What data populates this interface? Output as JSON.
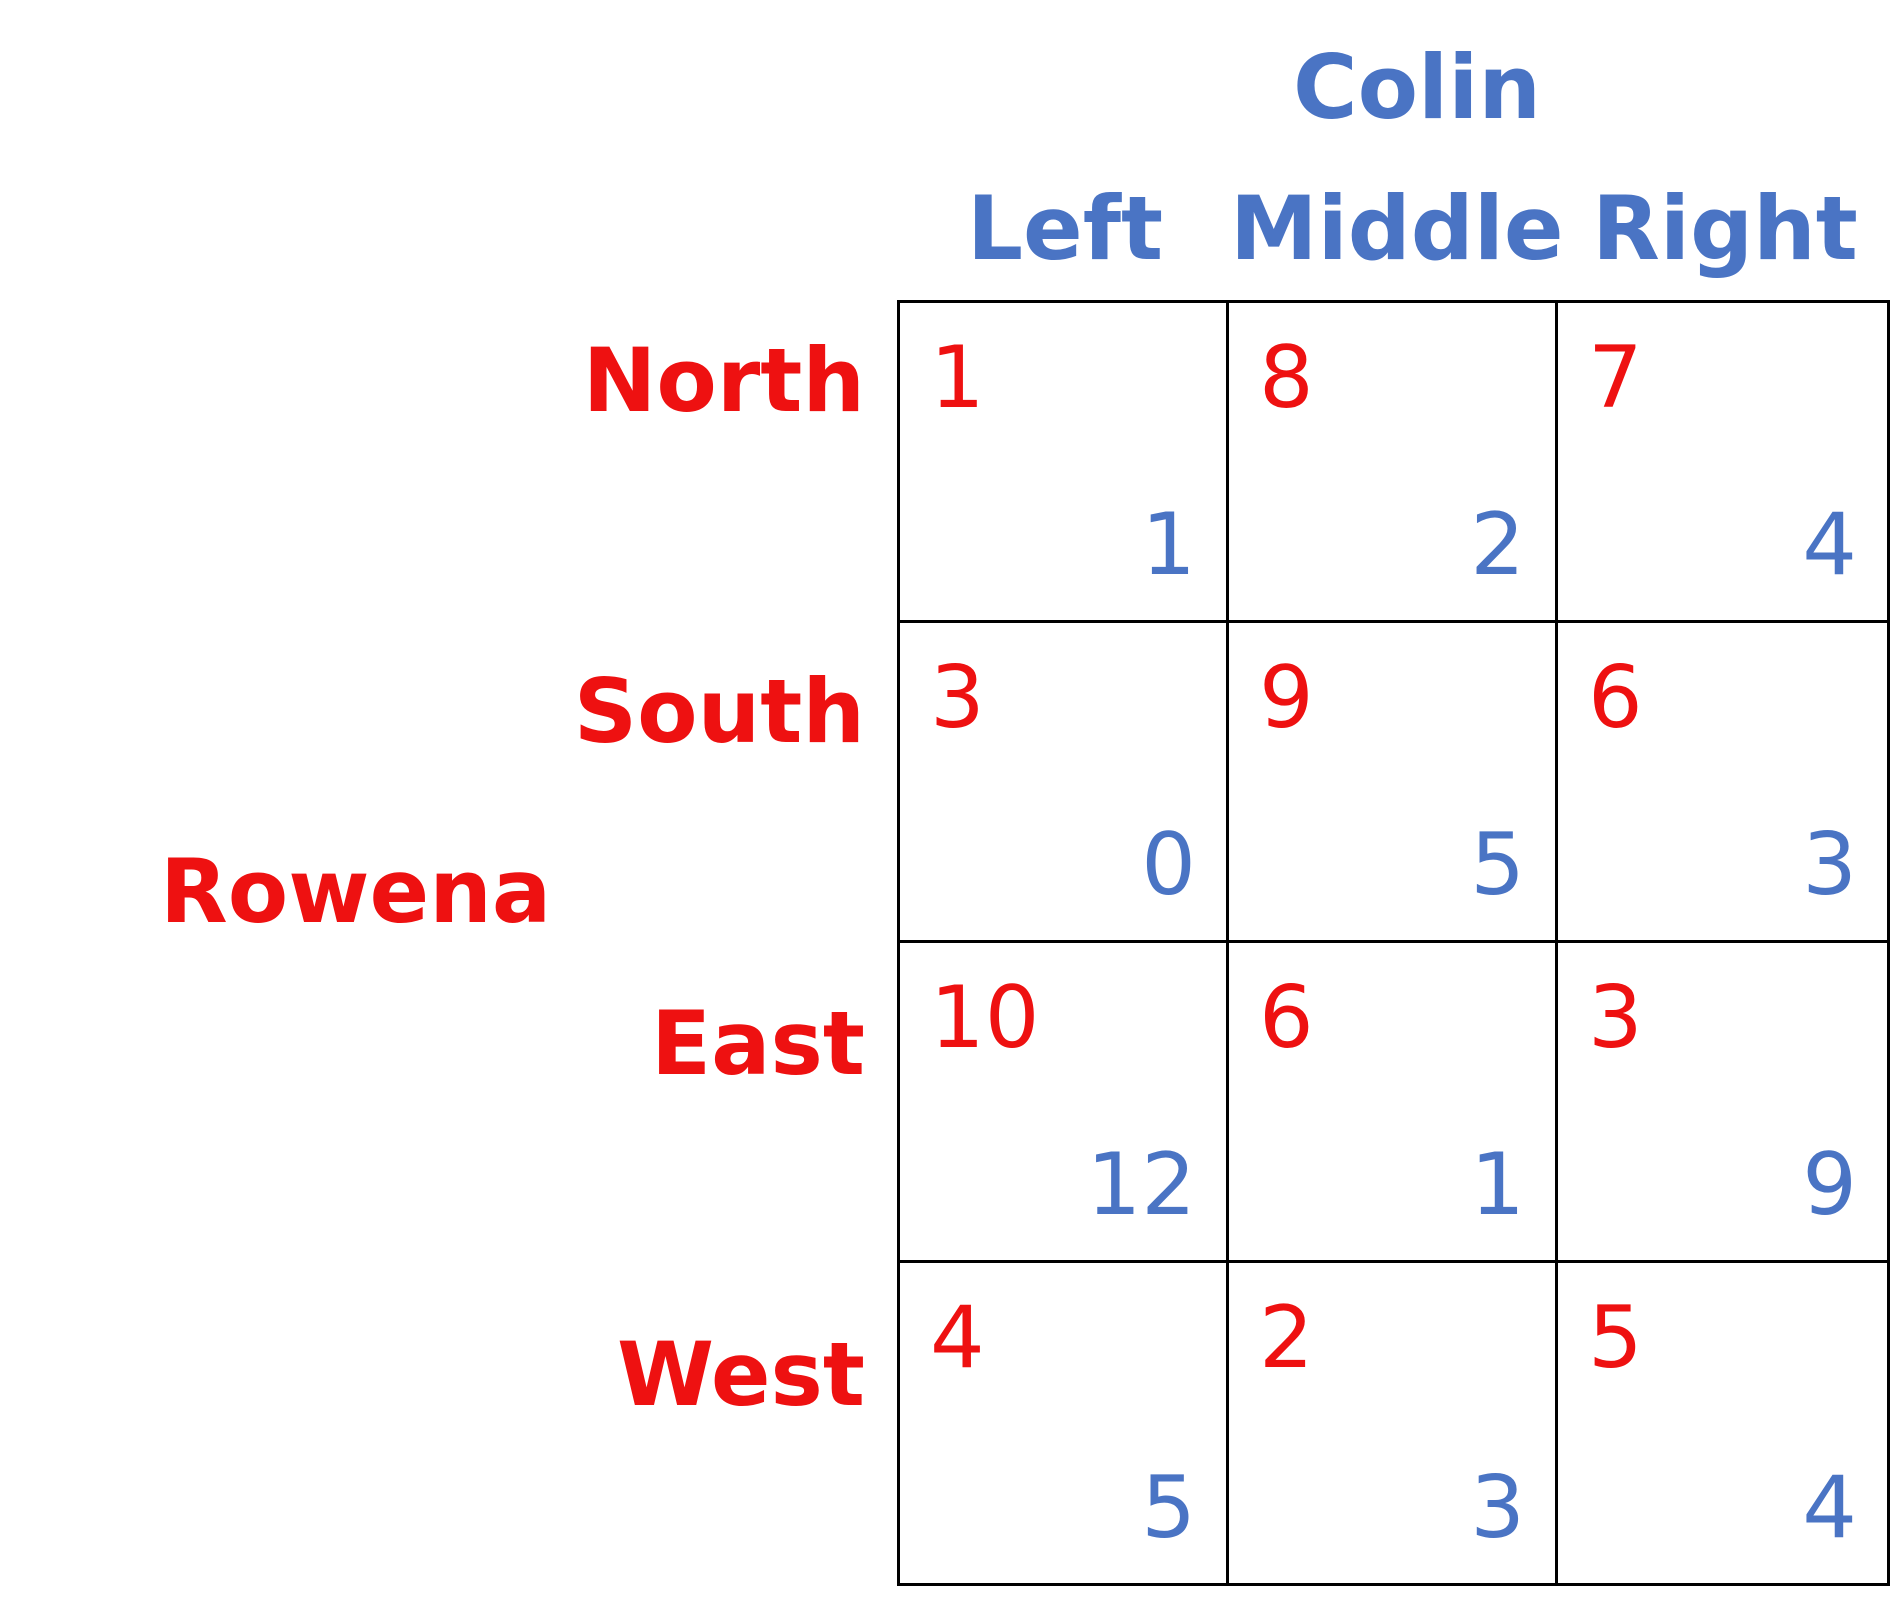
{
  "players": {
    "column_player": "Colin",
    "row_player": "Rowena"
  },
  "columns": [
    "Left",
    "Middle",
    "Right"
  ],
  "rows": [
    "North",
    "South",
    "East",
    "West"
  ],
  "colors": {
    "row_player": "#ee1111",
    "column_player": "#4a74c4"
  },
  "payoffs": [
    [
      {
        "row": "1",
        "col": "1"
      },
      {
        "row": "8",
        "col": "2"
      },
      {
        "row": "7",
        "col": "4"
      }
    ],
    [
      {
        "row": "3",
        "col": "0"
      },
      {
        "row": "9",
        "col": "5"
      },
      {
        "row": "6",
        "col": "3"
      }
    ],
    [
      {
        "row": "10",
        "col": "12"
      },
      {
        "row": "6",
        "col": "1"
      },
      {
        "row": "3",
        "col": "9"
      }
    ],
    [
      {
        "row": "4",
        "col": "5"
      },
      {
        "row": "2",
        "col": "3"
      },
      {
        "row": "5",
        "col": "4"
      }
    ]
  ]
}
